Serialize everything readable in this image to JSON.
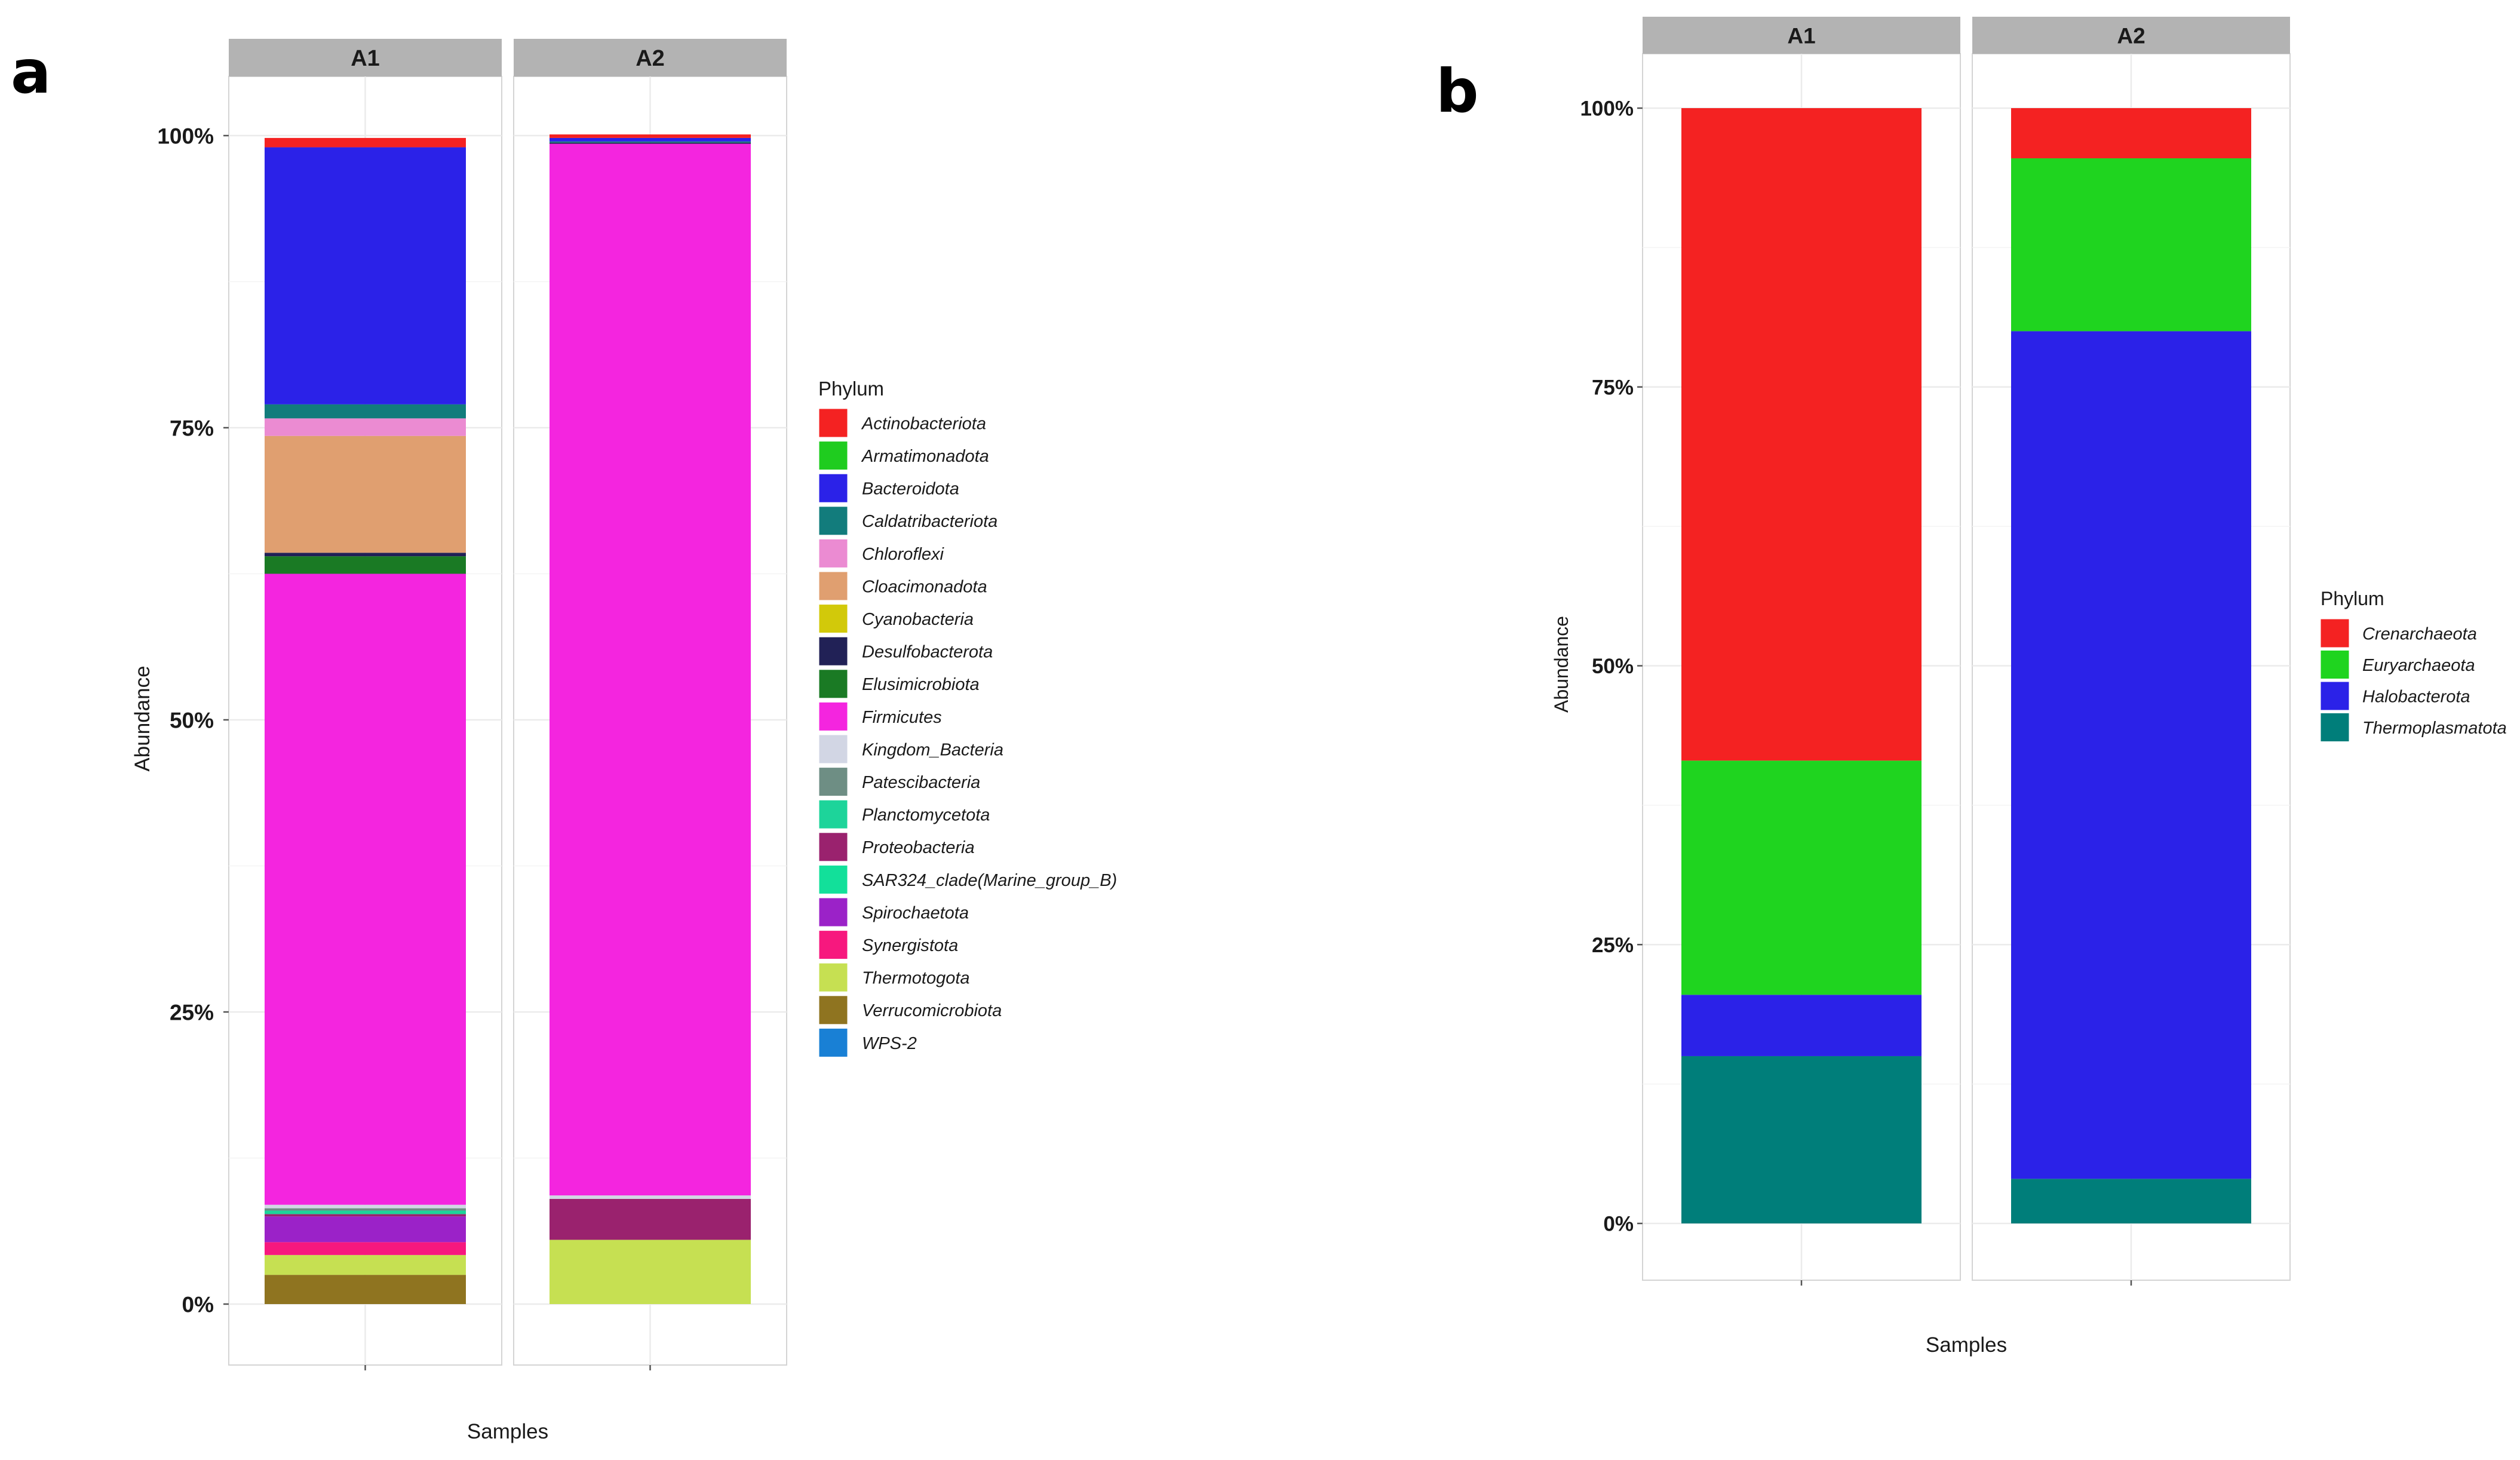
{
  "chart_data": [
    {
      "panel": "a",
      "type": "bar",
      "stacked": true,
      "xlabel": "Samples",
      "ylabel": "Abundance",
      "ylim": [
        0,
        1
      ],
      "yticks": [
        "0%",
        "25%",
        "50%",
        "75%",
        "100%"
      ],
      "facets": [
        "A1",
        "A2"
      ],
      "legend_title": "Phylum",
      "legend_position": "right",
      "series": [
        {
          "name": "Actinobacteriota",
          "color": "#F42222",
          "values": [
            0.008,
            0.003
          ]
        },
        {
          "name": "Armatimonadota",
          "color": "#1FCC1F",
          "values": [
            0.0,
            0.0
          ]
        },
        {
          "name": "Bacteroidota",
          "color": "#2B22E8",
          "values": [
            0.22,
            0.003
          ]
        },
        {
          "name": "Caldatribacteriota",
          "color": "#127C7C",
          "values": [
            0.012,
            0.001
          ]
        },
        {
          "name": "Chloroflexi",
          "color": "#EB8BD2",
          "values": [
            0.015,
            0.0
          ]
        },
        {
          "name": "Cloacimonadota",
          "color": "#E09F70",
          "values": [
            0.1,
            0.0
          ]
        },
        {
          "name": "Cyanobacteria",
          "color": "#D2C90A",
          "values": [
            0.0,
            0.0
          ]
        },
        {
          "name": "Desulfobacterota",
          "color": "#212156",
          "values": [
            0.003,
            0.001
          ]
        },
        {
          "name": "Elusimicrobiota",
          "color": "#1A7A24",
          "values": [
            0.015,
            0.0
          ]
        },
        {
          "name": "Firmicutes",
          "color": "#F425DF",
          "values": [
            0.54,
            0.9
          ]
        },
        {
          "name": "Kingdom_Bacteria",
          "color": "#D2D6E4",
          "values": [
            0.003,
            0.003
          ]
        },
        {
          "name": "Patescibacteria",
          "color": "#6E8E84",
          "values": [
            0.002,
            0.0
          ]
        },
        {
          "name": "Planctomycetota",
          "color": "#1DD49A",
          "values": [
            0.003,
            0.0
          ]
        },
        {
          "name": "Proteobacteria",
          "color": "#9A226E",
          "values": [
            0.002,
            0.035
          ]
        },
        {
          "name": "SAR324_clade(Marine_group_B)",
          "color": "#12E09A",
          "values": [
            0.0,
            0.0
          ]
        },
        {
          "name": "Spirochaetota",
          "color": "#9B22C8",
          "values": [
            0.022,
            0.0
          ]
        },
        {
          "name": "Synergistota",
          "color": "#F7187E",
          "values": [
            0.011,
            0.0
          ]
        },
        {
          "name": "Thermotogota",
          "color": "#C6E052",
          "values": [
            0.017,
            0.055
          ]
        },
        {
          "name": "Verrucomicrobiota",
          "color": "#8F7420",
          "values": [
            0.025,
            0.0
          ]
        },
        {
          "name": "WPS-2",
          "color": "#1980D5",
          "values": [
            0.0,
            0.0
          ]
        }
      ]
    },
    {
      "panel": "b",
      "type": "bar",
      "stacked": true,
      "xlabel": "Samples",
      "ylabel": "Abundance",
      "ylim": [
        0,
        1
      ],
      "yticks": [
        "0%",
        "25%",
        "50%",
        "75%",
        "100%"
      ],
      "facets": [
        "A1",
        "A2"
      ],
      "legend_title": "Phylum",
      "legend_position": "right",
      "series": [
        {
          "name": "Crenarchaeota",
          "color": "#F42222",
          "values": [
            0.585,
            0.045
          ]
        },
        {
          "name": "Euryarchaeota",
          "color": "#1FD41F",
          "values": [
            0.21,
            0.155
          ]
        },
        {
          "name": "Halobacterota",
          "color": "#2B22E8",
          "values": [
            0.055,
            0.76
          ]
        },
        {
          "name": "Thermoplasmatota",
          "color": "#007E7A",
          "values": [
            0.15,
            0.04
          ]
        }
      ]
    }
  ]
}
